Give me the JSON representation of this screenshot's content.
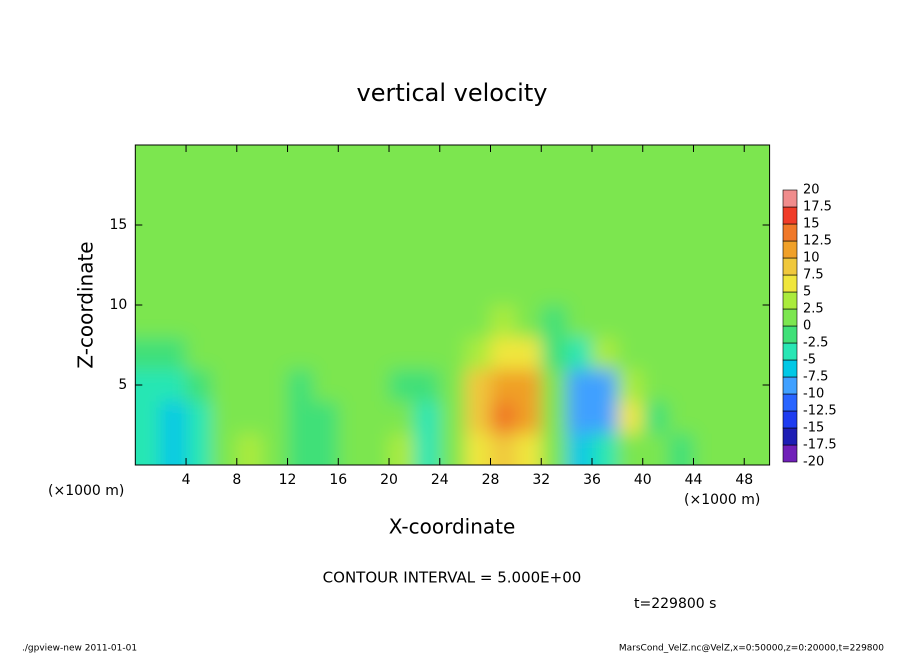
{
  "chart_data": {
    "type": "heatmap",
    "title": "vertical velocity",
    "x_label": "X-coordinate",
    "y_label": "Z-coordinate",
    "x_unit": "(×1000 m)",
    "x_unit_right": "(×1000 m)",
    "annotation": "CONTOUR INTERVAL = 5.000E+00",
    "time_label": "t=229800 s",
    "footer_left": "./gpview-new  2011-01-01",
    "footer_right": "MarsCond_VelZ.nc@VelZ,x=0:50000,z=0:20000,t=229800",
    "xlim": [
      0,
      50
    ],
    "ylim": [
      0,
      20
    ],
    "xticks": [
      4,
      8,
      12,
      16,
      20,
      24,
      28,
      32,
      36,
      40,
      44,
      48
    ],
    "yticks": [
      5,
      10,
      15
    ],
    "x": [
      1,
      3,
      5,
      7,
      9,
      11,
      13,
      15,
      17,
      19,
      21,
      23,
      25,
      27,
      29,
      31,
      33,
      35,
      37,
      39,
      41,
      43,
      45,
      47,
      49
    ],
    "y": [
      1,
      3,
      5,
      7,
      9,
      11,
      13,
      15,
      17,
      19
    ],
    "z": [
      [
        -3,
        -6,
        -3,
        1,
        3,
        1,
        -1,
        -1,
        0,
        1,
        3,
        -4,
        0,
        6,
        9,
        7,
        1,
        -6,
        -3,
        2,
        1,
        -2,
        0,
        1,
        1
      ],
      [
        -5,
        -6,
        -3,
        1,
        2,
        0,
        -2,
        -1,
        0,
        1,
        1,
        -5,
        0,
        9,
        13,
        10,
        2,
        -10,
        -8,
        6,
        -2,
        0,
        1,
        1,
        1
      ],
      [
        -4,
        -5,
        -2,
        1,
        1,
        0,
        -1,
        0,
        1,
        0,
        -1,
        -2,
        1,
        8,
        12,
        10,
        0,
        -8,
        -8,
        3,
        1,
        1,
        1,
        1,
        1
      ],
      [
        -2,
        -2,
        0,
        1,
        1,
        1,
        0,
        0,
        1,
        0,
        0,
        0,
        1,
        4,
        7,
        6,
        -2,
        -3,
        4,
        1,
        1,
        1,
        1,
        1,
        1
      ],
      [
        0,
        1,
        1,
        1,
        1,
        1,
        1,
        1,
        1,
        1,
        1,
        1,
        1,
        1,
        3,
        1,
        -1,
        1,
        1,
        1,
        1,
        1,
        1,
        1,
        1
      ],
      [
        1,
        1,
        2,
        1,
        1,
        2,
        1,
        1,
        1,
        1,
        1,
        1,
        1,
        1,
        1,
        1,
        1,
        1,
        1,
        1,
        2,
        1,
        1,
        1,
        1
      ],
      [
        1,
        2,
        1,
        1,
        1,
        1,
        1,
        1,
        2,
        1,
        1,
        1,
        1,
        1,
        1,
        1,
        1,
        1,
        0,
        1,
        1,
        1,
        2,
        1,
        1
      ],
      [
        1,
        1,
        1,
        1,
        2,
        1,
        1,
        1,
        1,
        1,
        1,
        1,
        2,
        1,
        1,
        1,
        1,
        1,
        1,
        1,
        1,
        1,
        1,
        1,
        1
      ],
      [
        1,
        1,
        1,
        2,
        1,
        1,
        1,
        1,
        1,
        1,
        1,
        1,
        1,
        1,
        1,
        2,
        1,
        1,
        1,
        1,
        1,
        1,
        1,
        2,
        1
      ],
      [
        1,
        1,
        1,
        1,
        1,
        1,
        2,
        1,
        1,
        1,
        1,
        1,
        1,
        1,
        1,
        1,
        1,
        1,
        1,
        1,
        1,
        1,
        1,
        1,
        1
      ]
    ],
    "levels": [
      -20,
      -17.5,
      -15,
      -12.5,
      -10,
      -7.5,
      -5,
      -2.5,
      0,
      2.5,
      5,
      7.5,
      10,
      12.5,
      15,
      17.5,
      20
    ],
    "colors": [
      "#7020b8",
      "#1e1eb4",
      "#1e3cf0",
      "#2864ff",
      "#40a0ff",
      "#00c8e6",
      "#28e6b4",
      "#40e078",
      "#7ce650",
      "#aaeb3c",
      "#f0e63c",
      "#f0c83c",
      "#f0a028",
      "#f07828",
      "#f03c28",
      "#f08c8c"
    ]
  }
}
